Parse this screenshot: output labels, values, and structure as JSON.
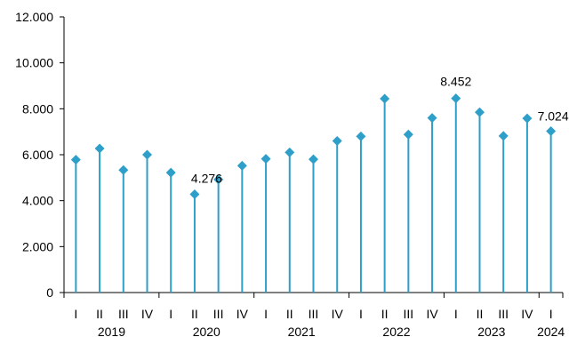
{
  "chart_data": {
    "type": "line",
    "style": "lollipop",
    "title": "",
    "xlabel": "",
    "ylabel": "",
    "ylim": [
      0,
      12000
    ],
    "yticks": [
      0,
      2000,
      4000,
      6000,
      8000,
      10000,
      12000
    ],
    "ytick_labels": [
      "0",
      "2.000",
      "4.000",
      "6.000",
      "8.000",
      "10.000",
      "12.000"
    ],
    "grid": false,
    "legend": "none",
    "color": "#2E9FC9",
    "categories": [
      "I",
      "II",
      "III",
      "IV",
      "I",
      "II",
      "III",
      "IV",
      "I",
      "II",
      "III",
      "IV",
      "I",
      "II",
      "III",
      "IV",
      "I",
      "II",
      "III",
      "IV",
      "I"
    ],
    "years": [
      {
        "label": "2019",
        "start": 0,
        "count": 4
      },
      {
        "label": "2020",
        "start": 4,
        "count": 4
      },
      {
        "label": "2021",
        "start": 8,
        "count": 4
      },
      {
        "label": "2022",
        "start": 12,
        "count": 4
      },
      {
        "label": "2023",
        "start": 16,
        "count": 4
      },
      {
        "label": "2024",
        "start": 20,
        "count": 1
      }
    ],
    "values": [
      5780,
      6270,
      5330,
      6000,
      5220,
      4276,
      4920,
      5520,
      5820,
      6100,
      5800,
      6600,
      6800,
      8440,
      6880,
      7600,
      8452,
      7850,
      6820,
      7580,
      7024
    ],
    "annotations": [
      {
        "index": 5,
        "text": "4.276"
      },
      {
        "index": 16,
        "text": "8.452"
      },
      {
        "index": 20,
        "text": "7.024"
      }
    ]
  }
}
